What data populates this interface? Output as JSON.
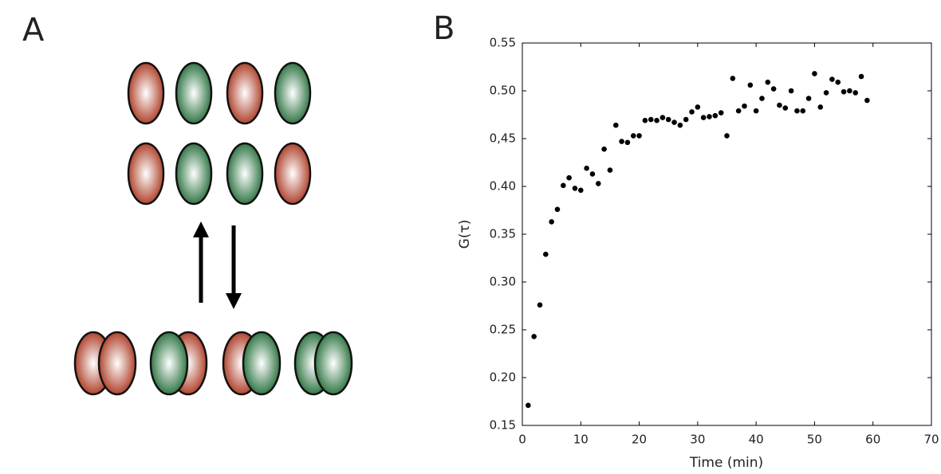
{
  "panel_a": {
    "label": "A"
  },
  "chart_data": {
    "type": "scatter",
    "panel_label": "B",
    "x_label": "Time (min)",
    "y_label": "G(τ)",
    "color": "#000000",
    "x": [
      1,
      2,
      3,
      4,
      5,
      6,
      7,
      8,
      9,
      10,
      11,
      12,
      13,
      14,
      15,
      16,
      17,
      18,
      19,
      20,
      21,
      22,
      23,
      24,
      25,
      26,
      27,
      28,
      29,
      30,
      31,
      32,
      33,
      34,
      35,
      36,
      37,
      38,
      39,
      40,
      41,
      42,
      43,
      44,
      45,
      46,
      47,
      48,
      49,
      50,
      51,
      52,
      53,
      54,
      55,
      56,
      57,
      58,
      59
    ],
    "values": [
      0.171,
      0.243,
      0.276,
      0.329,
      0.363,
      0.376,
      0.401,
      0.409,
      0.398,
      0.396,
      0.419,
      0.413,
      0.403,
      0.439,
      0.417,
      0.464,
      0.447,
      0.446,
      0.453,
      0.453,
      0.469,
      0.47,
      0.469,
      0.472,
      0.47,
      0.467,
      0.464,
      0.47,
      0.478,
      0.483,
      0.472,
      0.473,
      0.474,
      0.477,
      0.453,
      0.513,
      0.479,
      0.484,
      0.506,
      0.479,
      0.492,
      0.509,
      0.502,
      0.485,
      0.482,
      0.5,
      0.479,
      0.479,
      0.492,
      0.518,
      0.483,
      0.498,
      0.512,
      0.509,
      0.499,
      0.5,
      0.498,
      0.515,
      0.49
    ],
    "xlim": [
      0,
      70
    ],
    "xticks": [
      0,
      10,
      20,
      30,
      40,
      50,
      60,
      70
    ],
    "ylim": [
      0.15,
      0.55
    ],
    "yticks": [
      0.15,
      {
        "value": 0.2,
        "label": "0.20"
      },
      0.25,
      {
        "value": 0.3,
        "label": "0.30"
      },
      0.35,
      {
        "value": 0.4,
        "label": "0.40"
      },
      {
        "value": 0.45,
        "label": "0,45"
      },
      {
        "value": 0.5,
        "label": "0.50"
      },
      0.55
    ],
    "grid": false
  }
}
